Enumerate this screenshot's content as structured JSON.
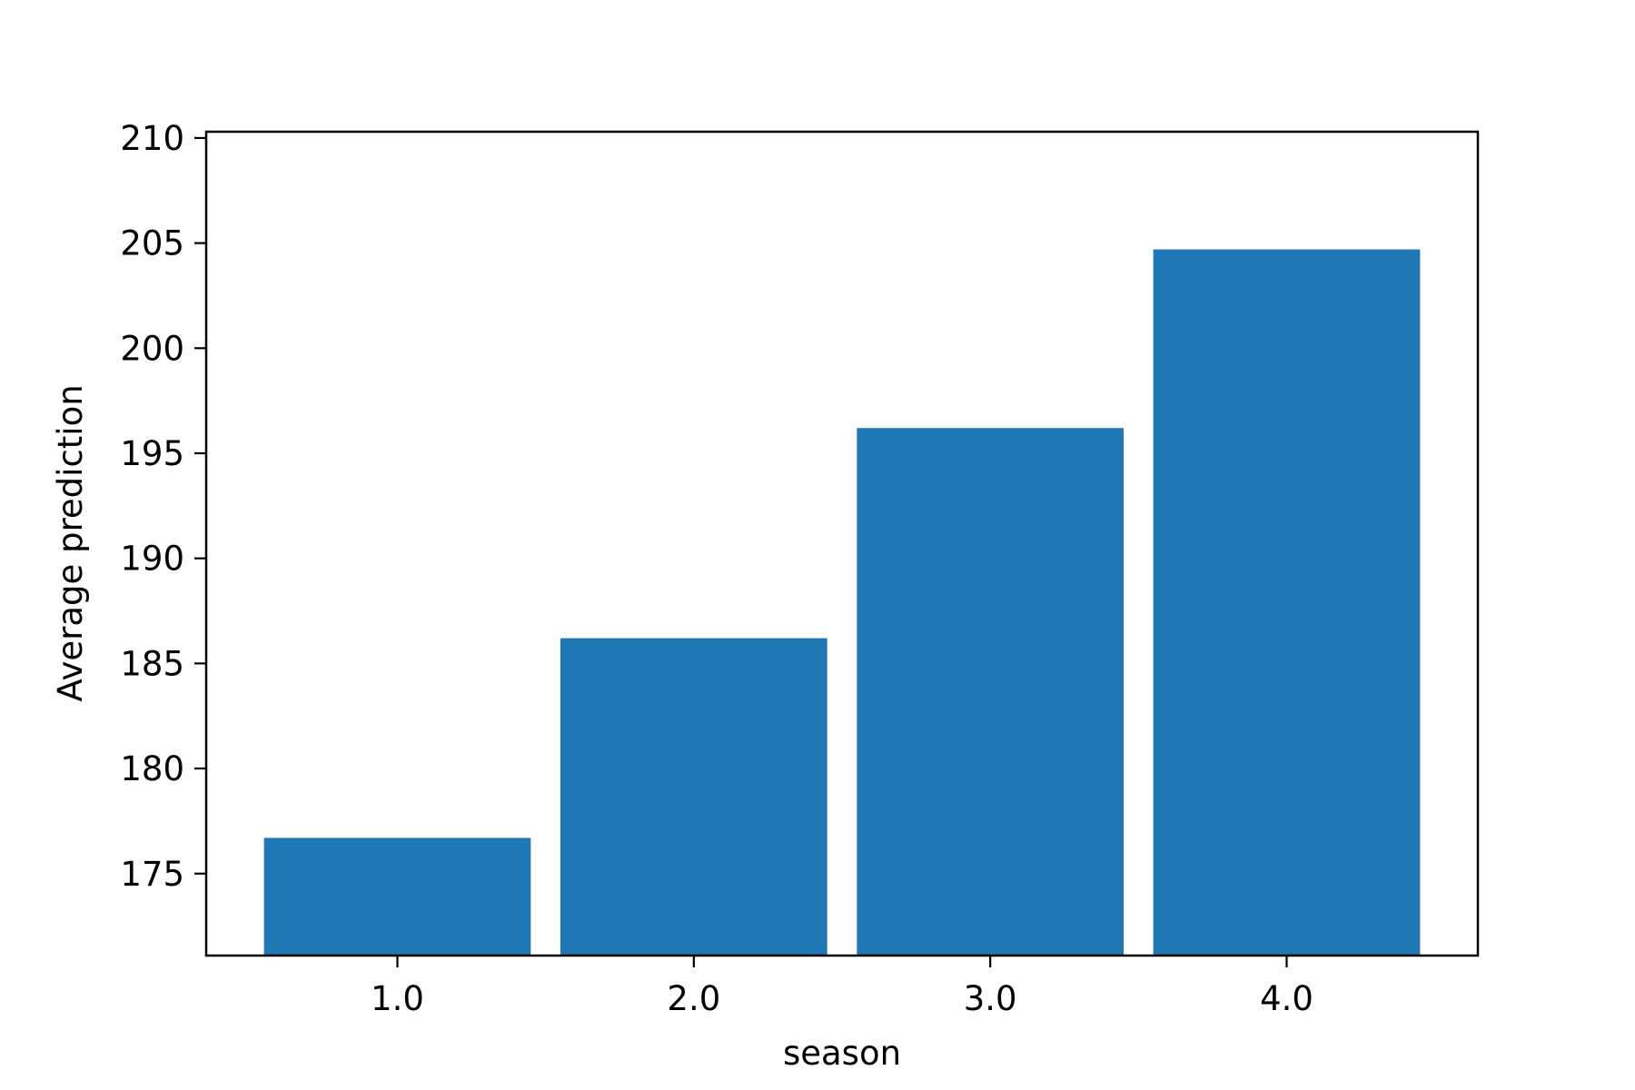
{
  "chart_data": {
    "type": "bar",
    "categories": [
      "1.0",
      "2.0",
      "3.0",
      "4.0"
    ],
    "values": [
      176.7,
      186.2,
      196.2,
      204.7
    ],
    "title": "",
    "xlabel": "season",
    "ylabel": "Average prediction",
    "ylim": [
      171.1,
      210.3
    ],
    "yticks": [
      "175",
      "180",
      "185",
      "190",
      "195",
      "200",
      "205",
      "210"
    ],
    "bar_color": "#1f77b4",
    "grid": false,
    "legend": "none"
  }
}
